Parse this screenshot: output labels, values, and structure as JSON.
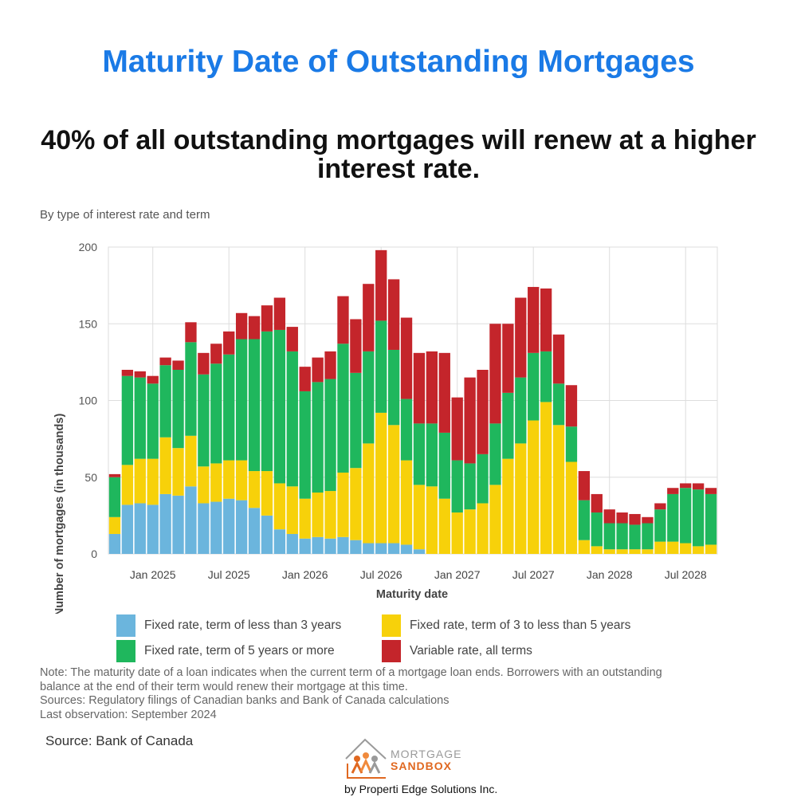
{
  "title": "Maturity Date of Outstanding Mortgages",
  "headline": "40% of all outstanding mortgages will renew at a higher interest rate.",
  "source": "Source: Bank of Canada",
  "logo": {
    "word1": "MORTGAGE",
    "word2": "SANDBOX",
    "tagline": "by Properti Edge Solutions Inc."
  },
  "colors": {
    "title": "#1a7ae6",
    "fixed_lt3": "#6bb5dd",
    "fixed_3to5": "#f7d10a",
    "fixed_5plus": "#1fb75d",
    "variable": "#c4252b"
  },
  "chart_data": {
    "type": "bar",
    "stacked": true,
    "subtitle": "By type of interest rate and term",
    "xlabel": "Maturity date",
    "ylabel": "Number of mortgages (in thousands)",
    "ylim": [
      0,
      200
    ],
    "yticks": [
      0,
      50,
      100,
      150,
      200
    ],
    "x_start": "Oct 2024",
    "x_end": "Sep 2028",
    "grid": true,
    "legend_position": "bottom",
    "xtick_labels": [
      "Jan 2025",
      "Jul 2025",
      "Jan 2026",
      "Jul 2026",
      "Jan 2027",
      "Jul 2027",
      "Jan 2028",
      "Jul 2028"
    ],
    "xtick_months": [
      3,
      9,
      15,
      21,
      27,
      33,
      39,
      45
    ],
    "series": [
      {
        "name": "Fixed rate, term of less than 3 years",
        "color": "#6bb5dd",
        "values": [
          13,
          32,
          33,
          32,
          39,
          38,
          44,
          33,
          34,
          36,
          35,
          30,
          25,
          16,
          13,
          10,
          11,
          10,
          11,
          9,
          7,
          7,
          7,
          6,
          3,
          0,
          0,
          0,
          0,
          0,
          0,
          0,
          0,
          0,
          0,
          0,
          0,
          0,
          0,
          0,
          0,
          0,
          0,
          0,
          0,
          0,
          0,
          0
        ]
      },
      {
        "name": "Fixed rate, term of 3 to less than 5 years",
        "color": "#f7d10a",
        "values": [
          11,
          26,
          29,
          30,
          37,
          31,
          33,
          24,
          25,
          25,
          26,
          24,
          29,
          30,
          31,
          26,
          29,
          31,
          42,
          47,
          65,
          85,
          77,
          55,
          42,
          44,
          36,
          27,
          29,
          33,
          45,
          62,
          72,
          87,
          99,
          84,
          60,
          9,
          5,
          3,
          3,
          3,
          3,
          8,
          8,
          7,
          5,
          6
        ]
      },
      {
        "name": "Fixed rate, term of 5 years or more",
        "color": "#1fb75d",
        "values": [
          26,
          58,
          53,
          49,
          47,
          51,
          61,
          60,
          65,
          69,
          79,
          86,
          91,
          100,
          88,
          70,
          72,
          73,
          84,
          62,
          60,
          60,
          49,
          40,
          40,
          41,
          43,
          34,
          30,
          32,
          40,
          43,
          43,
          44,
          33,
          27,
          23,
          26,
          22,
          17,
          17,
          16,
          17,
          21,
          31,
          36,
          37,
          33
        ]
      },
      {
        "name": "Variable rate, all terms",
        "color": "#c4252b",
        "values": [
          2,
          4,
          4,
          5,
          5,
          6,
          13,
          14,
          13,
          15,
          17,
          15,
          17,
          21,
          16,
          16,
          16,
          18,
          31,
          35,
          44,
          46,
          46,
          53,
          46,
          47,
          52,
          41,
          56,
          55,
          65,
          45,
          52,
          43,
          41,
          32,
          27,
          19,
          12,
          9,
          7,
          7,
          4,
          4,
          4,
          3,
          4,
          4
        ]
      }
    ]
  },
  "note": {
    "line1": "Note: The maturity date of a loan indicates when the current term of a mortgage loan ends. Borrowers with an outstanding",
    "line2": "balance at the end of their term would renew their mortgage at this time.",
    "line3": "Sources: Regulatory filings of Canadian banks and Bank of Canada calculations",
    "line4": "Last observation: September 2024"
  }
}
